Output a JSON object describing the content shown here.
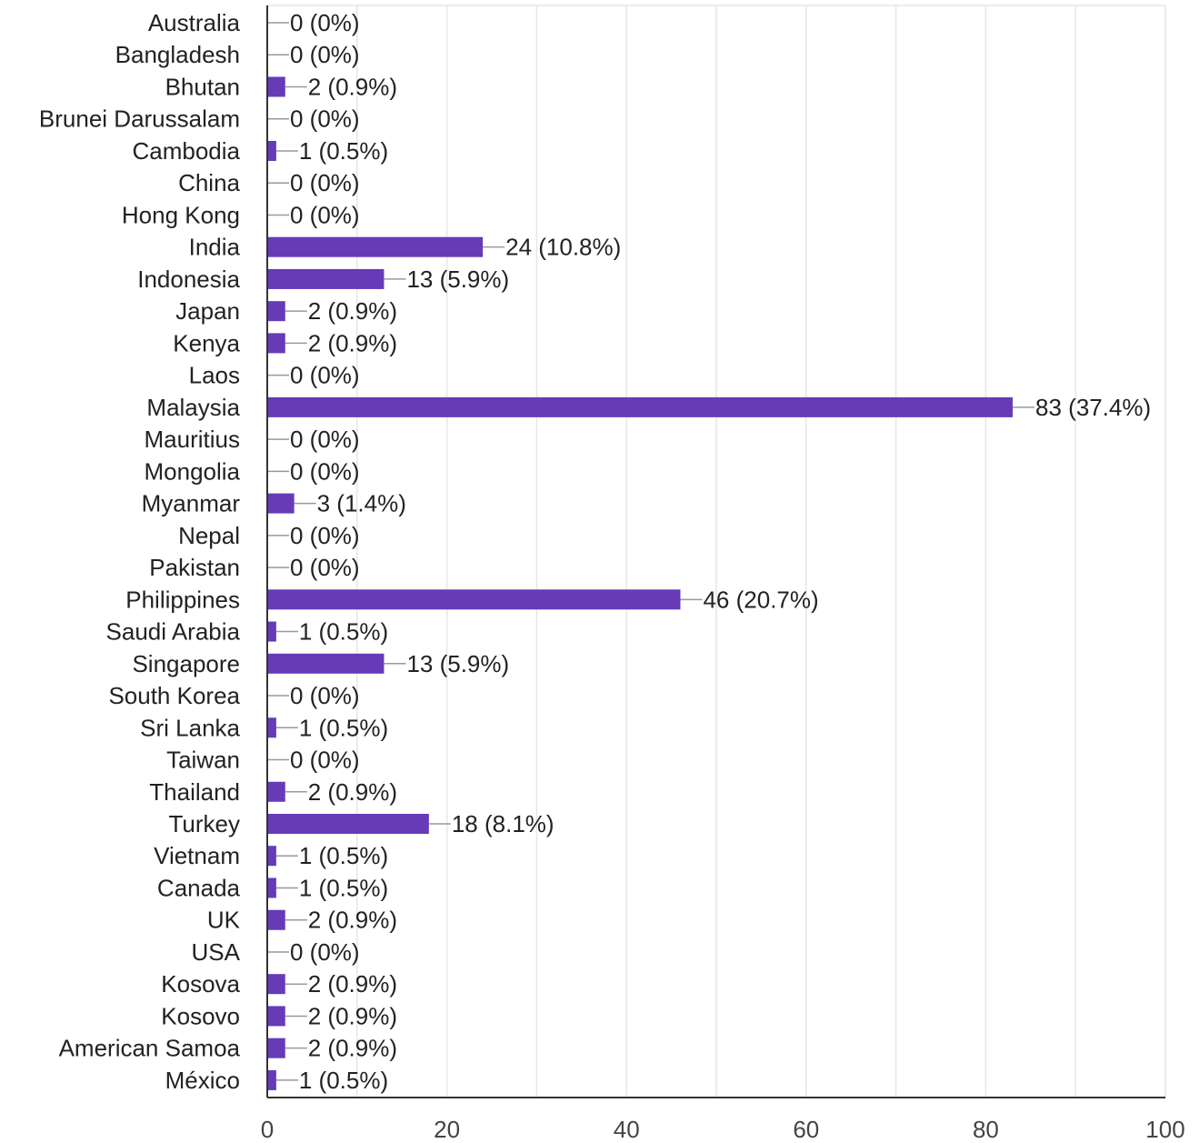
{
  "chart_data": {
    "type": "bar",
    "orientation": "horizontal",
    "categories": [
      "Australia",
      "Bangladesh",
      "Bhutan",
      "Brunei Darussalam",
      "Cambodia",
      "China",
      "Hong Kong",
      "India",
      "Indonesia",
      "Japan",
      "Kenya",
      "Laos",
      "Malaysia",
      "Mauritius",
      "Mongolia",
      "Myanmar",
      "Nepal",
      "Pakistan",
      "Philippines",
      "Saudi Arabia",
      "Singapore",
      "South Korea",
      "Sri Lanka",
      "Taiwan",
      "Thailand",
      "Turkey",
      "Vietnam",
      "Canada",
      "UK",
      "USA",
      "Kosova",
      "Kosovo",
      "American Samoa",
      "México"
    ],
    "values": [
      0,
      0,
      2,
      0,
      1,
      0,
      0,
      24,
      13,
      2,
      2,
      0,
      83,
      0,
      0,
      3,
      0,
      0,
      46,
      1,
      13,
      0,
      1,
      0,
      2,
      18,
      1,
      1,
      2,
      0,
      2,
      2,
      2,
      1
    ],
    "labels": [
      "0 (0%)",
      "0 (0%)",
      "2 (0.9%)",
      "0 (0%)",
      "1 (0.5%)",
      "0 (0%)",
      "0 (0%)",
      "24 (10.8%)",
      "13 (5.9%)",
      "2 (0.9%)",
      "2 (0.9%)",
      "0 (0%)",
      "83 (37.4%)",
      "0 (0%)",
      "0 (0%)",
      "3 (1.4%)",
      "0 (0%)",
      "0 (0%)",
      "46 (20.7%)",
      "1 (0.5%)",
      "13 (5.9%)",
      "0 (0%)",
      "1 (0.5%)",
      "0 (0%)",
      "2 (0.9%)",
      "18 (8.1%)",
      "1 (0.5%)",
      "1 (0.5%)",
      "2 (0.9%)",
      "0 (0%)",
      "2 (0.9%)",
      "2 (0.9%)",
      "2 (0.9%)",
      "1 (0.5%)"
    ],
    "xlim": [
      0,
      100
    ],
    "xticks": [
      0,
      20,
      40,
      60,
      80,
      100
    ],
    "xtick_labels": [
      "0",
      "20",
      "40",
      "60",
      "80",
      "100"
    ],
    "grid": true,
    "title": "",
    "xlabel": "",
    "ylabel": "",
    "colors": {
      "bar": "#673ab7",
      "grid": "#e6e6e6",
      "axis": "#333333",
      "leader": "#999999"
    }
  }
}
